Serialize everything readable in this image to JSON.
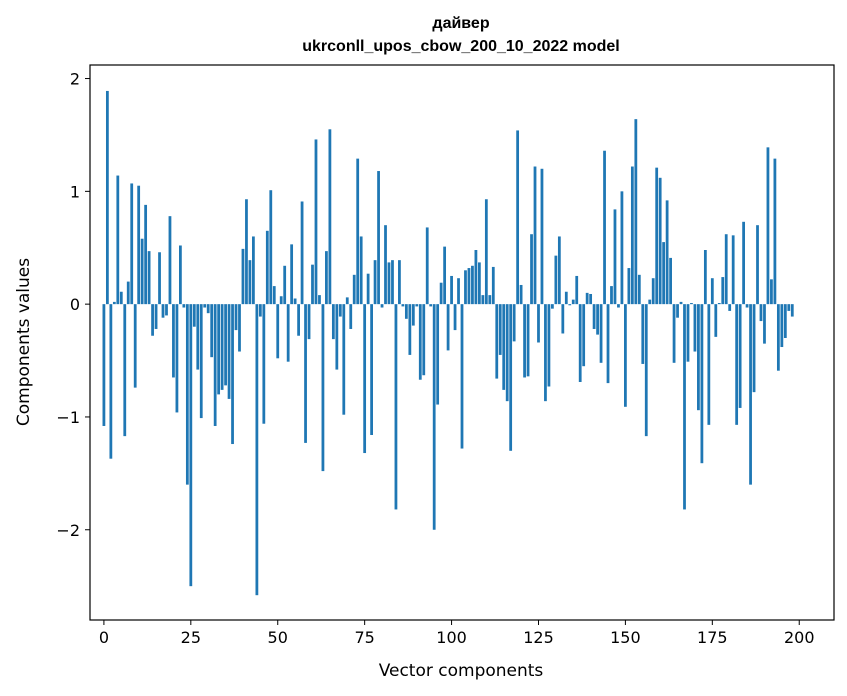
{
  "chart_data": {
    "type": "bar",
    "title": [
      "дайвер",
      "ukrconll_upos_cbow_200_10_2022 model"
    ],
    "xlabel": "Vector components",
    "ylabel": "Components values",
    "xlim": [
      -4,
      210
    ],
    "ylim": [
      -2.8,
      2.12
    ],
    "xticks": [
      0,
      25,
      50,
      75,
      100,
      125,
      150,
      175,
      200
    ],
    "xtick_labels": [
      "0",
      "25",
      "50",
      "75",
      "100",
      "125",
      "150",
      "175",
      "200"
    ],
    "yticks": [
      -2,
      -1,
      0,
      1,
      2
    ],
    "ytick_labels": [
      "−2",
      "−1",
      "0",
      "1",
      "2"
    ],
    "bar_color": "#1f77b4",
    "values": [
      -1.08,
      1.89,
      -1.37,
      0.02,
      1.14,
      0.11,
      -1.17,
      0.2,
      1.07,
      -0.74,
      1.05,
      0.58,
      0.88,
      0.47,
      -0.28,
      -0.22,
      0.46,
      -0.12,
      -0.1,
      0.78,
      -0.65,
      -0.96,
      0.52,
      -0.03,
      -1.6,
      -2.5,
      -0.2,
      -0.58,
      -1.01,
      -0.03,
      -0.08,
      -0.47,
      -1.08,
      -0.8,
      -0.76,
      -0.72,
      -0.84,
      -1.24,
      -0.23,
      -0.42,
      0.49,
      0.93,
      0.39,
      0.6,
      -2.58,
      -0.11,
      -1.06,
      0.65,
      1.01,
      0.16,
      -0.48,
      0.07,
      0.34,
      -0.51,
      0.53,
      0.05,
      -0.28,
      0.91,
      -1.23,
      -0.31,
      0.35,
      1.46,
      0.08,
      -1.48,
      0.47,
      1.55,
      -0.31,
      -0.58,
      -0.11,
      -0.98,
      0.06,
      -0.22,
      0.26,
      1.29,
      0.6,
      -1.32,
      0.27,
      -1.16,
      0.39,
      1.18,
      -0.03,
      0.7,
      0.37,
      0.39,
      -1.82,
      0.39,
      -0.02,
      -0.13,
      -0.45,
      -0.19,
      -0.02,
      -0.67,
      -0.63,
      0.68,
      -0.02,
      -2.0,
      -0.89,
      0.19,
      0.51,
      -0.41,
      0.25,
      -0.23,
      0.23,
      -1.28,
      0.3,
      0.32,
      0.34,
      0.48,
      0.37,
      0.08,
      0.93,
      0.08,
      0.33,
      -0.66,
      -0.45,
      -0.76,
      -0.86,
      -1.3,
      -0.33,
      1.54,
      0.17,
      -0.65,
      -0.64,
      0.62,
      1.22,
      -0.34,
      1.2,
      -0.86,
      -0.73,
      -0.04,
      0.43,
      0.6,
      -0.26,
      0.11,
      -0.01,
      0.04,
      0.25,
      -0.69,
      -0.55,
      0.1,
      0.09,
      -0.22,
      -0.27,
      -0.52,
      1.36,
      -0.7,
      0.16,
      0.84,
      -0.03,
      1.0,
      -0.91,
      0.32,
      1.22,
      1.64,
      0.26,
      -0.53,
      -1.17,
      0.04,
      0.23,
      1.21,
      1.12,
      0.55,
      0.92,
      0.41,
      -0.52,
      -0.12,
      0.02,
      -1.82,
      -0.51,
      0.01,
      -0.42,
      -0.94,
      -1.41,
      0.48,
      -1.07,
      0.23,
      -0.29,
      0.01,
      0.24,
      0.62,
      -0.06,
      0.61,
      -1.07,
      -0.92,
      0.73,
      -0.03,
      -1.6,
      -0.78,
      0.7,
      -0.15,
      -0.35,
      1.39,
      0.22,
      1.29,
      -0.59,
      -0.38,
      -0.3,
      -0.06,
      -0.11
    ]
  }
}
